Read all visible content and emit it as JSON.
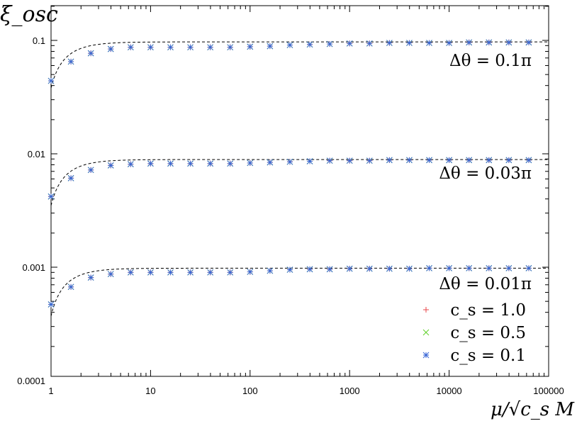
{
  "chart_data": {
    "type": "scatter",
    "xscale": "log",
    "yscale": "log",
    "xlim": [
      1,
      100000
    ],
    "ylim": [
      0.0001,
      0.2
    ],
    "ylabel": "ξ_osc",
    "xlabel": "μ/√c_s M",
    "xticks": [
      "1",
      "10",
      "100",
      "1000",
      "10000",
      "100000"
    ],
    "yticks": [
      "0.1",
      "0.01",
      "0.001",
      "0.0001"
    ],
    "annotations": [
      "Δθ = 0.1π",
      "Δθ = 0.03π",
      "Δθ = 0.01π"
    ],
    "x": [
      1,
      1.585,
      2.512,
      3.981,
      6.31,
      10,
      15.85,
      25.12,
      39.81,
      63.1,
      100,
      158.5,
      251.2,
      398.1,
      631,
      1000,
      1585,
      2512,
      3981,
      6310,
      10000,
      15850,
      25120,
      39810,
      63100
    ],
    "series": [
      {
        "name": "c_s = 1.0",
        "marker": "plus",
        "color": "#e8474b",
        "groups": [
          [
            0.044,
            0.065,
            0.077,
            0.084,
            0.087,
            0.087,
            0.087,
            0.087,
            0.087,
            0.087,
            0.088,
            0.089,
            0.091,
            0.092,
            0.093,
            0.094,
            0.094,
            0.095,
            0.095,
            0.095,
            0.095,
            0.096,
            0.096,
            0.096,
            0.096
          ],
          [
            0.0042,
            0.0061,
            0.0072,
            0.0079,
            0.0081,
            0.0082,
            0.0082,
            0.0082,
            0.0082,
            0.0082,
            0.0083,
            0.0084,
            0.0085,
            0.0086,
            0.0087,
            0.0087,
            0.0087,
            0.0088,
            0.0088,
            0.0088,
            0.0088,
            0.0088,
            0.0088,
            0.0088,
            0.0088
          ],
          [
            0.00047,
            0.00067,
            0.00081,
            0.00087,
            0.0009,
            0.0009,
            0.0009,
            0.0009,
            0.0009,
            0.0009,
            0.00091,
            0.00093,
            0.00095,
            0.00096,
            0.00096,
            0.00097,
            0.00097,
            0.00097,
            0.00097,
            0.00098,
            0.00098,
            0.00098,
            0.00098,
            0.00098,
            0.00098
          ]
        ]
      },
      {
        "name": "c_s = 0.5",
        "marker": "cross",
        "color": "#5fd12a",
        "groups": [
          [
            0.044,
            0.065,
            0.077,
            0.084,
            0.087,
            0.087,
            0.087,
            0.087,
            0.087,
            0.087,
            0.088,
            0.089,
            0.091,
            0.092,
            0.093,
            0.094,
            0.094,
            0.095,
            0.095,
            0.095,
            0.095,
            0.096,
            0.096,
            0.096,
            0.096
          ],
          [
            0.0042,
            0.0061,
            0.0072,
            0.0079,
            0.0081,
            0.0082,
            0.0082,
            0.0082,
            0.0082,
            0.0082,
            0.0083,
            0.0084,
            0.0085,
            0.0086,
            0.0087,
            0.0087,
            0.0087,
            0.0088,
            0.0088,
            0.0088,
            0.0088,
            0.0088,
            0.0088,
            0.0088,
            0.0088
          ],
          [
            0.00047,
            0.00067,
            0.00081,
            0.00087,
            0.0009,
            0.0009,
            0.0009,
            0.0009,
            0.0009,
            0.0009,
            0.00091,
            0.00093,
            0.00095,
            0.00096,
            0.00096,
            0.00097,
            0.00097,
            0.00097,
            0.00097,
            0.00098,
            0.00098,
            0.00098,
            0.00098,
            0.00098,
            0.00098
          ]
        ]
      },
      {
        "name": "c_s = 0.1",
        "marker": "star",
        "color": "#3a66d6",
        "groups": [
          [
            0.044,
            0.065,
            0.077,
            0.084,
            0.087,
            0.087,
            0.087,
            0.087,
            0.087,
            0.087,
            0.088,
            0.089,
            0.091,
            0.092,
            0.093,
            0.094,
            0.094,
            0.095,
            0.095,
            0.095,
            0.095,
            0.096,
            0.096,
            0.096,
            0.096
          ],
          [
            0.0042,
            0.0061,
            0.0072,
            0.0079,
            0.0081,
            0.0082,
            0.0082,
            0.0082,
            0.0082,
            0.0082,
            0.0083,
            0.0084,
            0.0085,
            0.0086,
            0.0087,
            0.0087,
            0.0087,
            0.0088,
            0.0088,
            0.0088,
            0.0088,
            0.0088,
            0.0088,
            0.0088,
            0.0088
          ],
          [
            0.00047,
            0.00067,
            0.00081,
            0.00087,
            0.0009,
            0.0009,
            0.0009,
            0.0009,
            0.0009,
            0.0009,
            0.00091,
            0.00093,
            0.00095,
            0.00096,
            0.00096,
            0.00097,
            0.00097,
            0.00097,
            0.00097,
            0.00098,
            0.00098,
            0.00098,
            0.00098,
            0.00098,
            0.00098
          ]
        ]
      }
    ],
    "curves": [
      {
        "style": "dashed",
        "asymptote": 0.097,
        "at_x1": 0.038
      },
      {
        "style": "dashed",
        "asymptote": 0.0089,
        "at_x1": 0.0035
      },
      {
        "style": "dashed",
        "asymptote": 0.00098,
        "at_x1": 0.00037
      }
    ],
    "legend": {
      "position": "bottom-right",
      "labels": [
        "c_s = 1.0",
        "c_s = 0.5",
        "c_s = 0.1"
      ]
    },
    "grid": false
  }
}
